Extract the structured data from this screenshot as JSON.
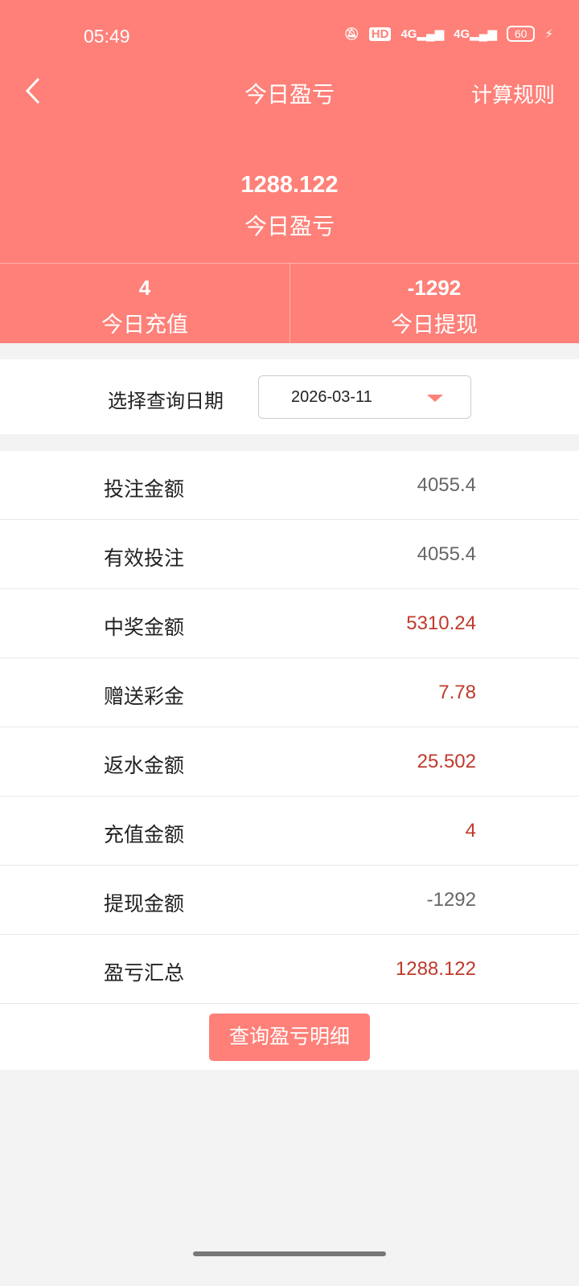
{
  "status": {
    "time": "05:49",
    "icons": [
      "bell-muted-icon",
      "hd-icon",
      "signal-4g-icon",
      "signal-4g-icon"
    ],
    "hd": "HD",
    "net1": "4G",
    "net2": "4G",
    "battery": "60"
  },
  "header": {
    "title": "今日盈亏",
    "rules": "计算规则",
    "amount": "1288.122",
    "amount_label": "今日盈亏",
    "stats": [
      {
        "value": "4",
        "label": "今日充值"
      },
      {
        "value": "-1292",
        "label": "今日提现"
      }
    ]
  },
  "date": {
    "label": "选择查询日期",
    "value": "2026-03-11"
  },
  "rows": [
    {
      "label": "投注金额",
      "value": "4055.4",
      "red": false
    },
    {
      "label": "有效投注",
      "value": "4055.4",
      "red": false
    },
    {
      "label": "中奖金额",
      "value": "5310.24",
      "red": true
    },
    {
      "label": "赠送彩金",
      "value": "7.78",
      "red": true
    },
    {
      "label": "返水金额",
      "value": "25.502",
      "red": true
    },
    {
      "label": "充值金额",
      "value": "4",
      "red": true
    },
    {
      "label": "提现金额",
      "value": "-1292",
      "red": false
    },
    {
      "label": "盈亏汇总",
      "value": "1288.122",
      "red": true
    }
  ],
  "button": "查询盈亏明细",
  "colors": {
    "accent": "#fe8078",
    "red_value": "#c0392b",
    "gray_value": "#666666"
  }
}
